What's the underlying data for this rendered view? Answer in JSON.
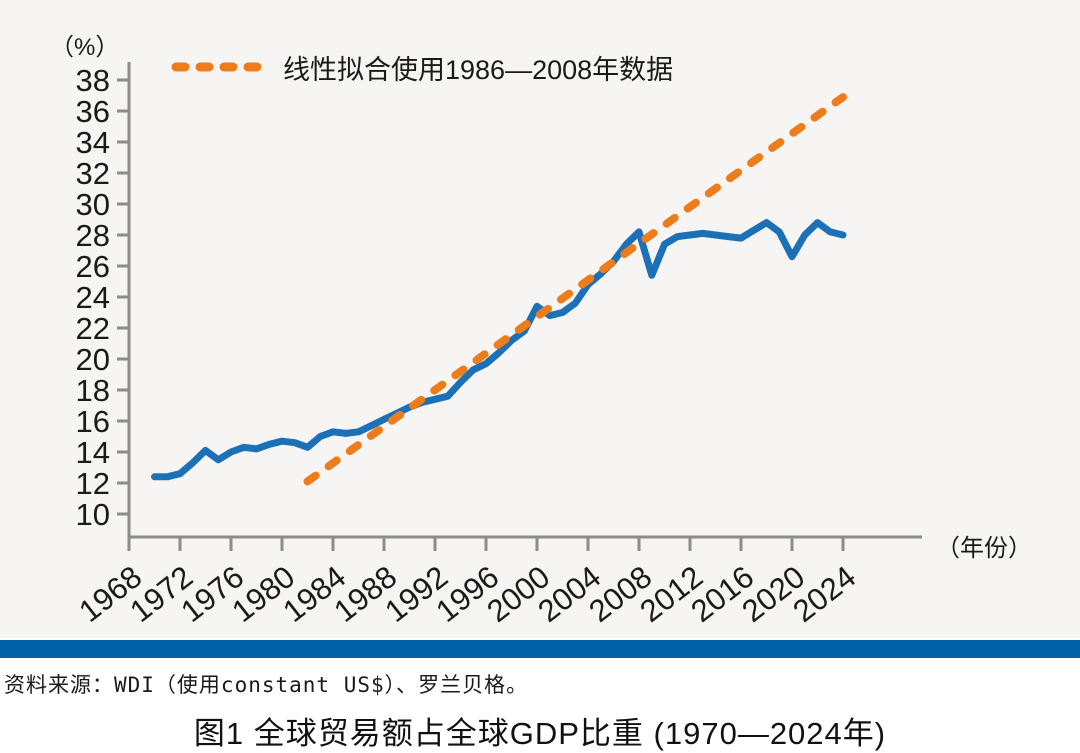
{
  "colors": {
    "page_background": "#ffffff",
    "chart_background": "#f6f5f3",
    "axis": "#8c8c8c",
    "text": "#1a1a1a",
    "trade_line": "#1c70b8",
    "fit_line": "#ed7d1b",
    "footer_bar": "#0060a6"
  },
  "chart_data": {
    "type": "line",
    "title": "图1 全球贸易额占全球GDP比重 (1970—2024年)",
    "xlabel": "（年份）",
    "ylabel": "（%）",
    "grid": "off",
    "ylim": [
      10,
      38
    ],
    "xlim": [
      1968,
      2024
    ],
    "y_ticks": [
      10,
      12,
      14,
      16,
      18,
      20,
      22,
      24,
      26,
      28,
      30,
      32,
      34,
      36,
      38
    ],
    "x_ticks": [
      1968,
      1972,
      1976,
      1980,
      1984,
      1988,
      1992,
      1996,
      2000,
      2004,
      2008,
      2012,
      2016,
      2020,
      2024
    ],
    "legend": {
      "label": "线性拟合使用1986—2008年数据",
      "position": "top-left-inside"
    },
    "series": [
      {
        "name": "全球贸易额占全球GDP比重",
        "style": "solid",
        "color": "#1c70b8",
        "x": [
          1970,
          1971,
          1972,
          1973,
          1974,
          1975,
          1976,
          1977,
          1978,
          1979,
          1980,
          1981,
          1982,
          1983,
          1984,
          1985,
          1986,
          1987,
          1988,
          1989,
          1990,
          1991,
          1992,
          1993,
          1994,
          1995,
          1996,
          1997,
          1998,
          1999,
          2000,
          2001,
          2002,
          2003,
          2004,
          2005,
          2006,
          2007,
          2008,
          2009,
          2010,
          2011,
          2012,
          2013,
          2014,
          2015,
          2016,
          2017,
          2018,
          2019,
          2020,
          2021,
          2022,
          2023,
          2024
        ],
        "values": [
          12.4,
          12.4,
          12.6,
          13.3,
          14.1,
          13.5,
          14.0,
          14.3,
          14.2,
          14.5,
          14.7,
          14.6,
          14.3,
          15.0,
          15.3,
          15.2,
          15.3,
          15.7,
          16.1,
          16.5,
          16.9,
          17.2,
          17.4,
          17.6,
          18.5,
          19.3,
          19.7,
          20.4,
          21.2,
          21.8,
          23.4,
          22.8,
          23.0,
          23.6,
          24.8,
          25.5,
          26.3,
          27.4,
          28.2,
          25.4,
          27.4,
          27.9,
          28.0,
          28.1,
          28.0,
          27.9,
          27.8,
          28.3,
          28.8,
          28.2,
          26.6,
          28.0,
          28.8,
          28.2,
          28.0
        ]
      },
      {
        "name": "线性拟合使用1986—2008年数据",
        "style": "dashed",
        "color": "#ed7d1b",
        "x": [
          1982,
          2024
        ],
        "values": [
          12.1,
          36.9
        ]
      }
    ]
  },
  "footer": {
    "source": "资料来源：WDI（使用constant US$）、罗兰贝格。",
    "caption": "图1 全球贸易额占全球GDP比重 (1970—2024年)"
  }
}
